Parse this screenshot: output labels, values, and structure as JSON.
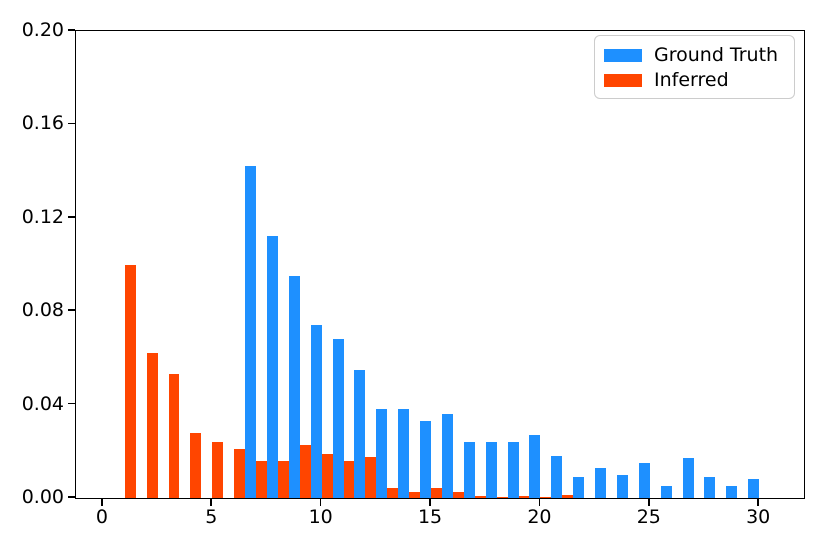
{
  "chart_data": {
    "type": "bar",
    "title": "",
    "xlabel": "",
    "ylabel": "",
    "xlim": [
      -1.23,
      32.05
    ],
    "ylim": [
      0.0,
      0.2
    ],
    "x_ticks": [
      0,
      5,
      10,
      15,
      20,
      25,
      30
    ],
    "y_ticks": [
      0.0,
      0.04,
      0.08,
      0.12,
      0.16,
      0.2
    ],
    "y_tick_labels": [
      "0.00",
      "0.04",
      "0.08",
      "0.12",
      "0.16",
      "0.20"
    ],
    "grid": false,
    "bar_width": 0.5,
    "categories": [
      1,
      2,
      3,
      4,
      5,
      6,
      7,
      8,
      9,
      10,
      11,
      12,
      13,
      14,
      15,
      16,
      17,
      18,
      19,
      20,
      21,
      22,
      23,
      24,
      25,
      26,
      27,
      28,
      29,
      30
    ],
    "series": [
      {
        "name": "Ground Truth",
        "color": "#1E90FF",
        "x_offset": 0.5,
        "values": [
          0,
          0,
          0,
          0,
          0,
          0.142,
          0.112,
          0.095,
          0.074,
          0.068,
          0.055,
          0.038,
          0.038,
          0.033,
          0.036,
          0.024,
          0.024,
          0.024,
          0.027,
          0.018,
          0.009,
          0.013,
          0.01,
          0.015,
          0.005,
          0.017,
          0.009,
          0.005,
          0.008,
          0
        ]
      },
      {
        "name": "Inferred",
        "color": "#FF4500",
        "x_offset": 0.0,
        "values": [
          0.1,
          0.062,
          0.053,
          0.028,
          0.024,
          0.021,
          0.016,
          0.016,
          0.0225,
          0.019,
          0.016,
          0.0175,
          0.0045,
          0.0025,
          0.0045,
          0.0025,
          0.001,
          0.0005,
          0.001,
          0.0005,
          0.0015,
          0,
          0,
          0,
          0,
          0,
          0,
          0,
          0,
          0
        ]
      }
    ],
    "legend": {
      "position": "upper right",
      "entries": [
        {
          "label": "Ground Truth",
          "color": "#1E90FF"
        },
        {
          "label": "Inferred",
          "color": "#FF4500"
        }
      ]
    }
  }
}
